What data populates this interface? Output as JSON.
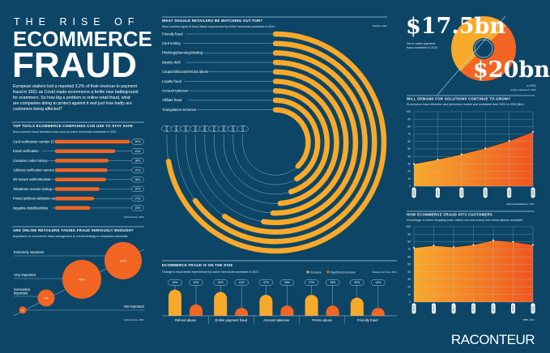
{
  "colors": {
    "background": "#0c4566",
    "orange": "#f26522",
    "yellow": "#f9a92a",
    "line": "#a9cfe3"
  },
  "header": {
    "kicker": "THE RISE OF",
    "title1": "ECOMMERCE",
    "title2": "FRAUD",
    "intro_lines": [
      "European etailers lost a reported 3.2% of their revenue to payment",
      "fraud in 2021 as Covid made ecommerce a fertile new battleground",
      "for scammers. So how big a problem is online retail fraud, what",
      "are companies doing to protect against it and just how badly are",
      "customers being affected?"
    ]
  },
  "brand": "RACONTEUR",
  "chart_data": [
    {
      "type": "bar",
      "title": "TOP TOOLS ECOMMERCE COMPANIES CAN USE TO STAY SAFE",
      "subtitle": "Most common fraud detection tools used by online merchants worldwide in 2021",
      "source": "Cybersource, 2021",
      "categories": [
        "Card verification number (CVN)",
        "Email verification",
        "Customer order history",
        "Address verification service (AVS)",
        "3D secure authentication",
        "Telephone reverse lookup",
        "Postal address validation services",
        "Negative lists/blacklists"
      ],
      "values": [
        54,
        43,
        38,
        37,
        36,
        31,
        27,
        24
      ],
      "unit": "%"
    },
    {
      "type": "scatter",
      "title": "ARE ONLINE RETAILERS TAKING FRAUD SERIOUSLY ENOUGH?",
      "subtitle": "Importance of ecommerce fraud management to overall strategy to companies worldwide",
      "source": "Cybersource, 2021",
      "categories": [
        "Extremely important",
        "Very important",
        "Somewhat important",
        "Not important"
      ],
      "values": [
        44,
        45,
        9,
        2
      ],
      "unit": "%"
    },
    {
      "type": "bar",
      "title": "WHAT SHOULD RETAILERS BE WATCHING OUT FOR?",
      "subtitle": "Most common types of fraud attack experienced by online merchants worldwide in 2021",
      "source": "Statista, 2021",
      "categories": [
        "Friendly fraud",
        "Card testing",
        "Phishing/pharming/whaling",
        "Identity theft",
        "Coupon/discount/refund abuse",
        "Loyalty fraud",
        "Account takeover",
        "Affiliate fraud",
        "Triangulation schemes"
      ],
      "values": [
        40,
        36,
        33,
        29,
        28,
        27,
        25,
        23,
        21
      ],
      "unit": "%"
    },
    {
      "type": "bar",
      "title": "ECOMMERCE FRAUD IS ON THE RISE",
      "subtitle": "Change in fraud levels experienced by online merchants worldwide in 2021",
      "source": "Statista and Visa, 2021",
      "categories": [
        "Refund abuse",
        "Online payment fraud",
        "Account takeover",
        "Promo abuse",
        "Friendly fraud"
      ],
      "series": [
        {
          "name": "Increase",
          "values": [
            46,
            42,
            37,
            37,
            32
          ]
        },
        {
          "name": "Significant increase",
          "values": [
            20,
            14,
            18,
            18,
            14
          ]
        }
      ],
      "unit": "%"
    },
    {
      "type": "pie",
      "labels": [
        "$17.5bn",
        "$20bn"
      ],
      "values": [
        17.5,
        20
      ],
      "captions": [
        "lost to online payment",
        "fraud worldwide in 2020",
        "in 2021"
      ],
      "source": "Juniper Research, 2021"
    },
    {
      "type": "area",
      "title": "WILL DEMAND FOR SOLUTIONS CONTINUE TO GROW?",
      "subtitle": "Ecommerce fraud detection and prevention market size worldwide from 2020 to 2025 ($bn)",
      "source": "MarketsandMarkets, 2021",
      "x": [
        "2020",
        "2021",
        "2022",
        "2023",
        "2024",
        "2025"
      ],
      "values": [
        30,
        36,
        43,
        51,
        61,
        73
      ],
      "ylim": [
        0,
        100
      ],
      "yticks": [
        0,
        10,
        20,
        30,
        40,
        50,
        60,
        70,
        80,
        90,
        100
      ],
      "grid": true
    },
    {
      "type": "area",
      "title": "HOW ECOMMERCE FRAUD HITS CUSTOMERS",
      "subtitle": "Percentage of online shopping scam victims who lost money from these attacks worldwide",
      "source": "BBB, 2021",
      "x": [
        "2015",
        "2016",
        "2017",
        "2018",
        "2019",
        "2020",
        "2021"
      ],
      "values": [
        72,
        75,
        73,
        76,
        82,
        80,
        76
      ],
      "ylim": [
        0,
        100
      ],
      "yticks": [
        0,
        10,
        20,
        30,
        40,
        50,
        60,
        70,
        80,
        90,
        100
      ],
      "grid": true
    }
  ]
}
